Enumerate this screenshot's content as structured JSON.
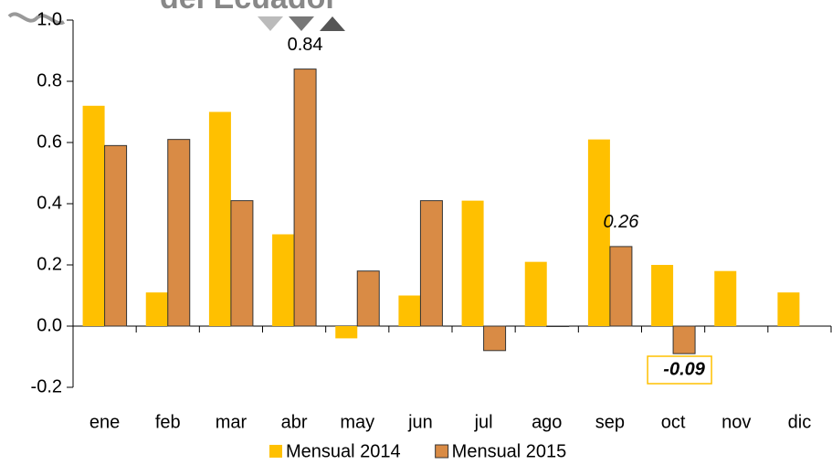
{
  "chart_data": {
    "type": "bar",
    "watermark": "del Ecuador",
    "categories": [
      "ene",
      "feb",
      "mar",
      "abr",
      "may",
      "jun",
      "jul",
      "ago",
      "sep",
      "oct",
      "nov",
      "dic"
    ],
    "series": [
      {
        "name": "Mensual 2014",
        "color": "#ffc000",
        "values": [
          0.72,
          0.11,
          0.7,
          0.3,
          -0.04,
          0.1,
          0.41,
          0.21,
          0.61,
          0.2,
          0.18,
          0.11
        ]
      },
      {
        "name": "Mensual 2015",
        "color": "#d98b45",
        "values": [
          0.59,
          0.61,
          0.41,
          0.84,
          0.18,
          0.41,
          -0.08,
          0.0,
          0.26,
          -0.09,
          null,
          null
        ],
        "value_labels": [
          null,
          null,
          null,
          "0.84",
          null,
          null,
          null,
          null,
          "0.26",
          "-0.09",
          null,
          null
        ]
      }
    ],
    "ylim": [
      -0.2,
      1.0
    ],
    "yticks": [
      -0.2,
      {
        "value": 0,
        "label": "0.0"
      },
      0.2,
      0.4,
      0.6,
      0.8,
      {
        "value": 1,
        "label": "1.0"
      }
    ],
    "grid": false,
    "legend": "bottom"
  }
}
